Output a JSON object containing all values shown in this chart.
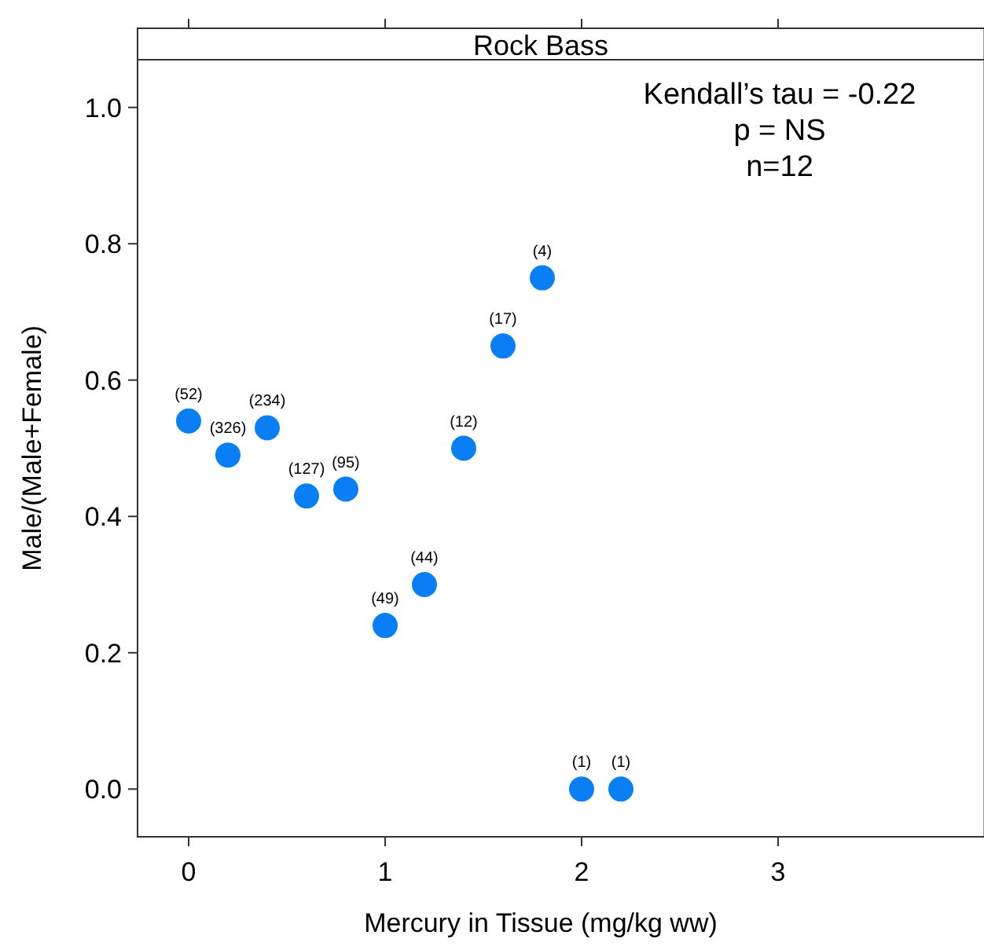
{
  "chart_data": {
    "type": "scatter",
    "title": "Rock Bass",
    "xlabel": "Mercury in Tissue (mg/kg ww)",
    "ylabel": "Male/(Male+Female)",
    "x": [
      0,
      0.2,
      0.4,
      0.6,
      0.8,
      1.0,
      1.2,
      1.4,
      1.6,
      1.8,
      2.0,
      2.2
    ],
    "series": [
      {
        "color": "#0a7ff5",
        "values": [
          0.54,
          0.49,
          0.53,
          0.43,
          0.44,
          0.24,
          0.3,
          0.5,
          0.65,
          0.75,
          0,
          0
        ]
      }
    ],
    "xlim": [
      -0.26,
      4.05
    ],
    "xticks": [
      0,
      1,
      2,
      3
    ],
    "ylim": [
      -0.07,
      1.07
    ],
    "yticks": [
      {
        "value": 0,
        "label": "0.0"
      },
      {
        "value": 0.2,
        "label": "0.2"
      },
      {
        "value": 0.4,
        "label": "0.4"
      },
      {
        "value": 0.6,
        "label": "0.6"
      },
      {
        "value": 0.8,
        "label": "0.8"
      },
      {
        "value": 1,
        "label": "1.0"
      }
    ],
    "marker": "circle",
    "annotations": [
      "Kendall’s tau  = -0.22",
      "p = NS",
      "n=12",
      {
        "text": "(52)",
        "x": 0,
        "y": 0.54
      },
      {
        "text": "(326)",
        "x": 0.2,
        "y": 0.49
      },
      {
        "text": "(234)",
        "x": 0.4,
        "y": 0.53
      },
      {
        "text": "(127)",
        "x": 0.6,
        "y": 0.43
      },
      {
        "text": "(95)",
        "x": 0.8,
        "y": 0.44
      },
      {
        "text": "(49)",
        "x": 1.0,
        "y": 0.24
      },
      {
        "text": "(44)",
        "x": 1.2,
        "y": 0.3
      },
      {
        "text": "(12)",
        "x": 1.4,
        "y": 0.5
      },
      {
        "text": "(17)",
        "x": 1.6,
        "y": 0.65
      },
      {
        "text": "(4)",
        "x": 1.8,
        "y": 0.75
      },
      {
        "text": "(1)",
        "x": 2.0,
        "y": 0
      },
      {
        "text": "(1)",
        "x": 2.2,
        "y": 0
      }
    ]
  }
}
